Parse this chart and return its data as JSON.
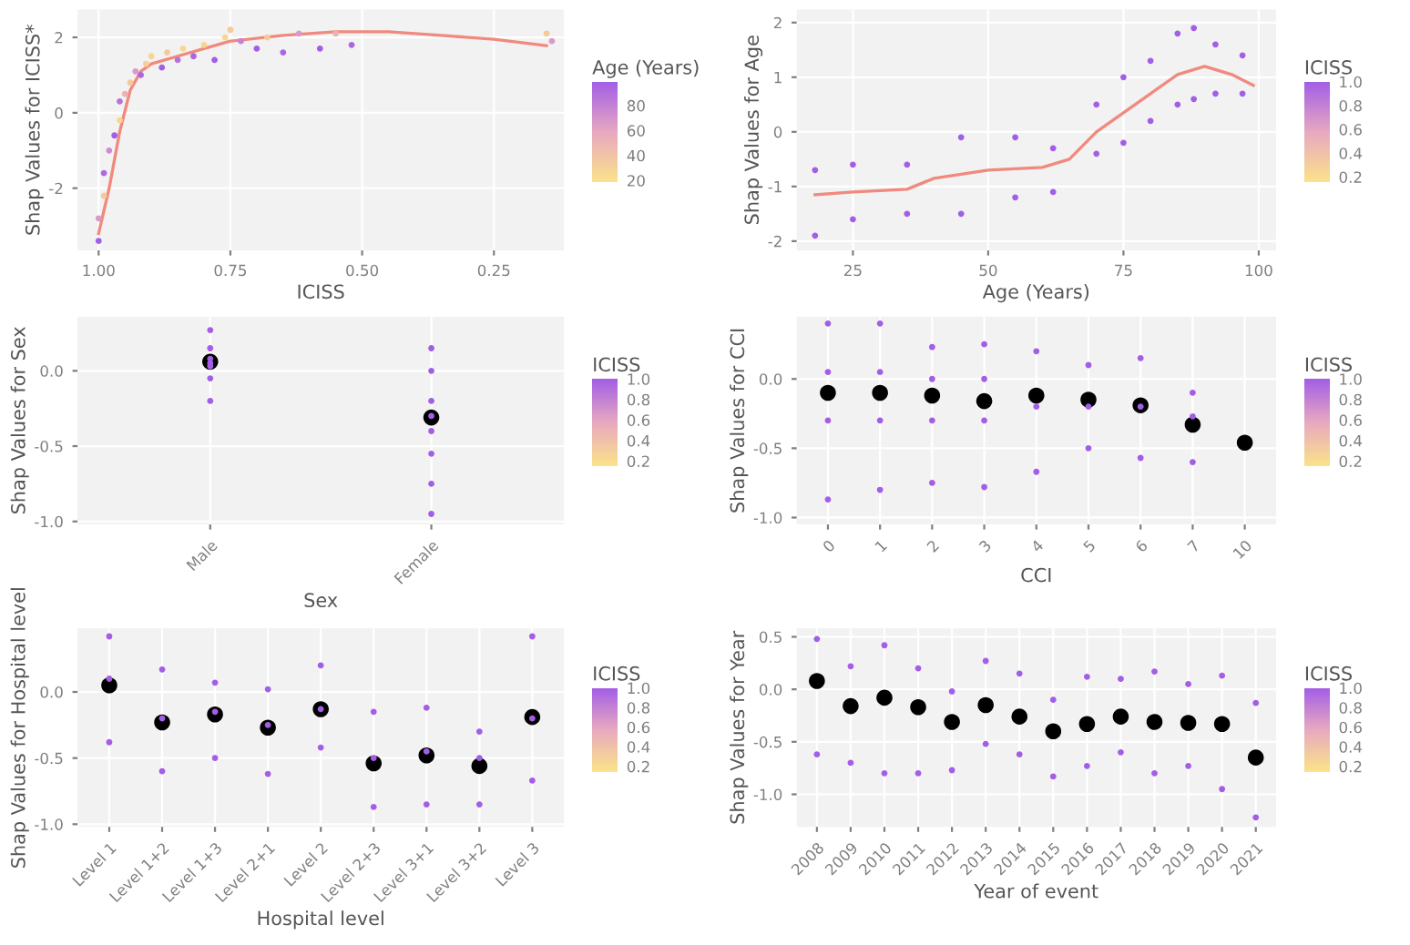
{
  "chart_data": [
    {
      "type": "scatter",
      "xlabel": "ICISS",
      "ylabel": "Shap Values for ICISS*",
      "xlim": [
        1.04,
        0.117
      ],
      "xticks": [
        {
          "value": 1,
          "label": "1.00"
        },
        {
          "value": 0.75,
          "label": "0.75"
        },
        {
          "value": 0.5,
          "label": "0.50"
        },
        {
          "value": 0.25,
          "label": "0.25"
        }
      ],
      "ylim": [
        -3.65,
        2.74
      ],
      "yticks": [
        -2,
        0,
        2
      ],
      "grid": true,
      "clabel": "Age (Years)",
      "clim": [
        18,
        99
      ],
      "cticks": [
        20,
        40,
        60,
        80
      ],
      "series": [
        {
          "x": [
            1.0,
            1.0,
            0.99,
            0.99,
            0.98,
            0.97,
            0.96,
            0.96,
            0.95,
            0.94,
            0.93,
            0.92,
            0.91,
            0.9,
            0.88,
            0.87,
            0.85,
            0.84,
            0.82,
            0.8,
            0.78,
            0.76,
            0.75,
            0.73,
            0.7,
            0.68,
            0.65,
            0.62,
            0.58,
            0.55,
            0.52,
            0.15,
            0.14
          ],
          "values": [
            -3.4,
            -2.8,
            -2.2,
            -1.6,
            -1.0,
            -0.6,
            -0.2,
            0.3,
            0.5,
            0.8,
            1.1,
            1.0,
            1.3,
            1.5,
            1.2,
            1.6,
            1.4,
            1.7,
            1.5,
            1.8,
            1.4,
            2.0,
            2.2,
            1.9,
            1.7,
            2.0,
            1.6,
            2.1,
            1.7,
            2.1,
            1.8,
            2.1,
            1.9
          ],
          "colors": [
            "#a35ee6",
            "#d99ac8",
            "#f5c99a",
            "#b06ade",
            "#cf8ccf",
            "#a35ee6",
            "#f8d692",
            "#b872da",
            "#ecb3b0",
            "#f5c99a",
            "#d99ac8",
            "#ac66e0",
            "#f7d095",
            "#f8d692",
            "#a35ee6",
            "#f5c99a",
            "#b872da",
            "#f8d692",
            "#ac66e0",
            "#f8d692",
            "#a35ee6",
            "#f8d692",
            "#f5c99a",
            "#c681d3",
            "#a35ee6",
            "#f5c99a",
            "#ac66e0",
            "#d99ac8",
            "#a35ee6",
            "#ecb3b0",
            "#ac66e0",
            "#f5c99a",
            "#d99ac8"
          ]
        },
        {
          "type": "line",
          "color": "#f08a7e",
          "x": [
            1.0,
            0.98,
            0.96,
            0.94,
            0.92,
            0.9,
            0.85,
            0.8,
            0.75,
            0.65,
            0.55,
            0.45,
            0.35,
            0.25,
            0.15
          ],
          "values": [
            -3.2,
            -2.0,
            -0.5,
            0.6,
            1.1,
            1.3,
            1.5,
            1.7,
            1.9,
            2.05,
            2.15,
            2.15,
            2.05,
            1.95,
            1.78
          ]
        }
      ]
    },
    {
      "type": "scatter",
      "xlabel": "Age (Years)",
      "ylabel": "Shap Values for Age",
      "xlim": [
        14.6,
        103.2
      ],
      "xticks": [
        25,
        50,
        75,
        100
      ],
      "ylim": [
        -2.17,
        2.24
      ],
      "yticks": [
        -2,
        -1,
        0,
        1,
        2
      ],
      "grid": true,
      "clabel": "ICISS",
      "clim": [
        0.15,
        1.0
      ],
      "cticks": [
        {
          "value": 0.2,
          "label": "0.2"
        },
        {
          "value": 0.4,
          "label": "0.4"
        },
        {
          "value": 0.6,
          "label": "0.6"
        },
        {
          "value": 0.8,
          "label": "0.8"
        },
        {
          "value": 1.0,
          "label": "1.0"
        }
      ],
      "series": [
        {
          "color": "#a35ee6",
          "x": [
            18,
            18,
            25,
            25,
            35,
            35,
            45,
            45,
            55,
            55,
            62,
            62,
            70,
            70,
            75,
            75,
            80,
            80,
            85,
            85,
            88,
            88,
            92,
            92,
            97,
            97
          ],
          "values": [
            -1.9,
            -0.7,
            -1.6,
            -0.6,
            -1.5,
            -0.6,
            -1.5,
            -0.1,
            -1.2,
            -0.1,
            -1.1,
            -0.3,
            -0.4,
            0.5,
            -0.2,
            1.0,
            0.2,
            1.3,
            0.5,
            1.8,
            0.6,
            1.9,
            0.7,
            1.6,
            0.7,
            1.4
          ]
        },
        {
          "type": "line",
          "color": "#f08a7e",
          "x": [
            18,
            25,
            35,
            40,
            50,
            60,
            65,
            70,
            75,
            80,
            85,
            90,
            95,
            99
          ],
          "values": [
            -1.15,
            -1.1,
            -1.05,
            -0.85,
            -0.7,
            -0.65,
            -0.5,
            0.0,
            0.35,
            0.7,
            1.05,
            1.2,
            1.05,
            0.85
          ]
        }
      ]
    },
    {
      "type": "scatter",
      "xlabel": "Sex",
      "ylabel": "Shap Values for Sex",
      "categories": [
        "Male",
        "Female"
      ],
      "ylim": [
        -1.02,
        0.36
      ],
      "yticks": [
        {
          "value": -1,
          "label": "-1.0"
        },
        {
          "value": -0.5,
          "label": "-0.5"
        },
        {
          "value": 0,
          "label": "0.0"
        }
      ],
      "grid": true,
      "clabel": "ICISS",
      "clim": [
        0.15,
        1.0
      ],
      "cticks": [
        {
          "value": 0.2,
          "label": "0.2"
        },
        {
          "value": 0.4,
          "label": "0.4"
        },
        {
          "value": 0.6,
          "label": "0.6"
        },
        {
          "value": 0.8,
          "label": "0.8"
        },
        {
          "value": 1.0,
          "label": "1.0"
        }
      ],
      "series": [
        {
          "color": "#a35ee6",
          "x": [
            "Male",
            "Male",
            "Male",
            "Male",
            "Male",
            "Male",
            "Male",
            "Female",
            "Female",
            "Female",
            "Female",
            "Female",
            "Female",
            "Female",
            "Female"
          ],
          "values": [
            0.27,
            0.15,
            0.08,
            0.05,
            0.03,
            -0.05,
            -0.2,
            0.15,
            0.0,
            -0.2,
            -0.3,
            -0.4,
            -0.55,
            -0.75,
            -0.95
          ]
        },
        {
          "color": "#000000",
          "x": [
            "Male",
            "Female"
          ],
          "values": [
            0.06,
            -0.31
          ]
        }
      ]
    },
    {
      "type": "scatter",
      "xlabel": "CCI",
      "ylabel": "Shap Values for CCI",
      "categories": [
        "0",
        "1",
        "2",
        "3",
        "4",
        "5",
        "6",
        "7",
        "10"
      ],
      "ylim": [
        -1.05,
        0.45
      ],
      "yticks": [
        {
          "value": -1,
          "label": "-1.0"
        },
        {
          "value": -0.5,
          "label": "-0.5"
        },
        {
          "value": 0,
          "label": "0.0"
        }
      ],
      "grid": true,
      "clabel": "ICISS",
      "clim": [
        0.15,
        1.0
      ],
      "cticks": [
        {
          "value": 0.2,
          "label": "0.2"
        },
        {
          "value": 0.4,
          "label": "0.4"
        },
        {
          "value": 0.6,
          "label": "0.6"
        },
        {
          "value": 0.8,
          "label": "0.8"
        },
        {
          "value": 1.0,
          "label": "1.0"
        }
      ],
      "series": [
        {
          "color": "#a35ee6",
          "x": [
            "0",
            "0",
            "0",
            "0",
            "1",
            "1",
            "1",
            "1",
            "2",
            "2",
            "2",
            "2",
            "3",
            "3",
            "3",
            "3",
            "4",
            "4",
            "4",
            "5",
            "5",
            "5",
            "6",
            "6",
            "6",
            "7",
            "7",
            "7"
          ],
          "values": [
            0.4,
            0.05,
            -0.3,
            -0.87,
            0.4,
            0.05,
            -0.3,
            -0.8,
            0.23,
            0.0,
            -0.3,
            -0.75,
            0.25,
            0.0,
            -0.3,
            -0.78,
            0.2,
            -0.2,
            -0.67,
            0.1,
            -0.2,
            -0.5,
            0.15,
            -0.2,
            -0.57,
            -0.1,
            -0.27,
            -0.6
          ]
        },
        {
          "color": "#000000",
          "x": [
            "0",
            "1",
            "2",
            "3",
            "4",
            "5",
            "6",
            "7",
            "10"
          ],
          "values": [
            -0.1,
            -0.1,
            -0.12,
            -0.16,
            -0.12,
            -0.15,
            -0.19,
            -0.33,
            -0.46
          ]
        }
      ]
    },
    {
      "type": "scatter",
      "xlabel": "Hospital level",
      "ylabel": "Shap Values for Hospital level",
      "categories": [
        "Level 1",
        "Level 1+2",
        "Level 1+3",
        "Level 2+1",
        "Level 2",
        "Level 2+3",
        "Level 3+1",
        "Level 3+2",
        "Level 3"
      ],
      "ylim": [
        -1.02,
        0.48
      ],
      "yticks": [
        {
          "value": -1,
          "label": "-1.0"
        },
        {
          "value": -0.5,
          "label": "-0.5"
        },
        {
          "value": 0,
          "label": "0.0"
        }
      ],
      "grid": true,
      "clabel": "ICISS",
      "clim": [
        0.15,
        1.0
      ],
      "cticks": [
        {
          "value": 0.2,
          "label": "0.2"
        },
        {
          "value": 0.4,
          "label": "0.4"
        },
        {
          "value": 0.6,
          "label": "0.6"
        },
        {
          "value": 0.8,
          "label": "0.8"
        },
        {
          "value": 1.0,
          "label": "1.0"
        }
      ],
      "series": [
        {
          "color": "#a35ee6",
          "x": [
            "Level 1",
            "Level 1",
            "Level 1",
            "Level 1+2",
            "Level 1+2",
            "Level 1+2",
            "Level 1+3",
            "Level 1+3",
            "Level 1+3",
            "Level 2+1",
            "Level 2+1",
            "Level 2+1",
            "Level 2",
            "Level 2",
            "Level 2",
            "Level 2+3",
            "Level 2+3",
            "Level 2+3",
            "Level 3+1",
            "Level 3+1",
            "Level 3+1",
            "Level 3+2",
            "Level 3+2",
            "Level 3+2",
            "Level 3",
            "Level 3",
            "Level 3"
          ],
          "values": [
            0.42,
            0.1,
            -0.38,
            0.17,
            -0.2,
            -0.6,
            0.07,
            -0.15,
            -0.5,
            0.02,
            -0.25,
            -0.62,
            0.2,
            -0.13,
            -0.42,
            -0.15,
            -0.5,
            -0.87,
            -0.12,
            -0.45,
            -0.85,
            -0.3,
            -0.5,
            -0.85,
            0.42,
            -0.2,
            -0.67
          ]
        },
        {
          "color": "#000000",
          "x": [
            "Level 1",
            "Level 1+2",
            "Level 1+3",
            "Level 2+1",
            "Level 2",
            "Level 2+3",
            "Level 3+1",
            "Level 3+2",
            "Level 3"
          ],
          "values": [
            0.05,
            -0.23,
            -0.17,
            -0.27,
            -0.13,
            -0.54,
            -0.48,
            -0.56,
            -0.19
          ]
        }
      ]
    },
    {
      "type": "scatter",
      "xlabel": "Year of event",
      "ylabel": "Shap Values for Year",
      "xlim": [
        2007.4,
        2021.6
      ],
      "xticks": [
        2008,
        2009,
        2010,
        2011,
        2012,
        2013,
        2014,
        2015,
        2016,
        2017,
        2018,
        2019,
        2020,
        2021
      ],
      "ylim": [
        -1.31,
        0.58
      ],
      "yticks": [
        {
          "value": -1,
          "label": "-1.0"
        },
        {
          "value": -0.5,
          "label": "-0.5"
        },
        {
          "value": 0,
          "label": "0.0"
        },
        {
          "value": 0.5,
          "label": "0.5"
        }
      ],
      "grid": true,
      "clabel": "ICISS",
      "clim": [
        0.15,
        1.0
      ],
      "cticks": [
        {
          "value": 0.2,
          "label": "0.2"
        },
        {
          "value": 0.4,
          "label": "0.4"
        },
        {
          "value": 0.6,
          "label": "0.6"
        },
        {
          "value": 0.8,
          "label": "0.8"
        },
        {
          "value": 1.0,
          "label": "1.0"
        }
      ],
      "series": [
        {
          "color": "#a35ee6",
          "x": [
            2008,
            2008,
            2009,
            2009,
            2010,
            2010,
            2011,
            2011,
            2012,
            2012,
            2013,
            2013,
            2014,
            2014,
            2015,
            2015,
            2016,
            2016,
            2017,
            2017,
            2018,
            2018,
            2019,
            2019,
            2020,
            2020,
            2021,
            2021
          ],
          "values": [
            0.48,
            -0.62,
            0.22,
            -0.7,
            0.42,
            -0.8,
            0.2,
            -0.8,
            -0.02,
            -0.77,
            0.27,
            -0.52,
            0.15,
            -0.62,
            -0.1,
            -0.83,
            0.12,
            -0.73,
            0.1,
            -0.6,
            0.17,
            -0.8,
            0.05,
            -0.73,
            0.13,
            -0.95,
            -0.13,
            -1.22
          ]
        },
        {
          "color": "#000000",
          "x": [
            2008,
            2009,
            2010,
            2011,
            2012,
            2013,
            2014,
            2015,
            2016,
            2017,
            2018,
            2019,
            2020,
            2021
          ],
          "values": [
            0.08,
            -0.16,
            -0.08,
            -0.17,
            -0.31,
            -0.15,
            -0.26,
            -0.4,
            -0.33,
            -0.26,
            -0.31,
            -0.32,
            -0.33,
            -0.65
          ]
        }
      ]
    }
  ]
}
